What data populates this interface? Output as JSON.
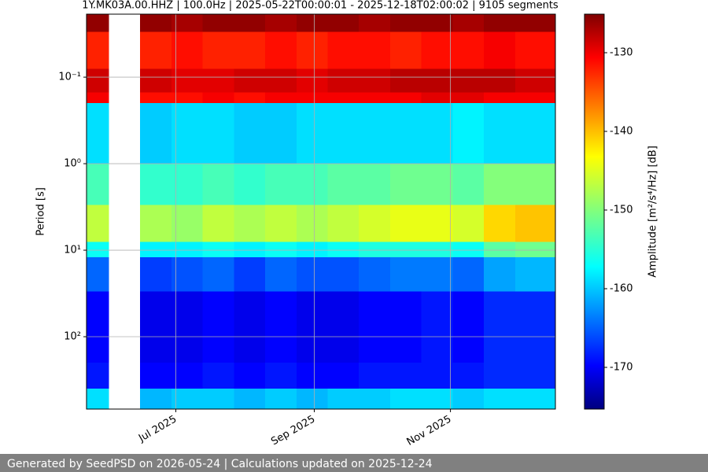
{
  "chart_data": {
    "type": "heatmap",
    "title": "1Y.MK03A.00.HHZ | 100.0Hz | 2025-05-22T00:00:01 - 2025-12-18T02:00:02 | 9105 segments",
    "ylabel": "Period [s]",
    "colorbar_label": "Amplitude [m²/s⁴/Hz] [dB]",
    "x_edges": [
      "2025-05-22",
      "2025-06-01",
      "2025-06-15",
      "2025-06-29",
      "2025-07-13",
      "2025-07-27",
      "2025-08-10",
      "2025-08-24",
      "2025-09-07",
      "2025-09-21",
      "2025-10-05",
      "2025-10-19",
      "2025-11-02",
      "2025-11-16",
      "2025-11-30",
      "2025-12-18"
    ],
    "y_edges": [
      0.0187,
      0.03,
      0.08,
      0.15,
      0.2,
      1,
      3,
      8,
      12,
      30,
      200,
      400,
      686
    ],
    "values": [
      [
        -126,
        null,
        -126,
        -127,
        -126,
        -126,
        -127,
        -126,
        -126,
        -127,
        -126,
        -126,
        -127,
        -126,
        -126
      ],
      [
        -133,
        null,
        -133,
        -132,
        -133,
        -133,
        -132,
        -133,
        -132,
        -132,
        -133,
        -132,
        -132,
        -131,
        -132
      ],
      [
        -129,
        null,
        -129,
        -130,
        -130,
        -129,
        -129,
        -130,
        -129,
        -129,
        -128,
        -128,
        -128,
        -128,
        -129
      ],
      [
        -131,
        null,
        -132,
        -132,
        -131,
        -132,
        -131,
        -131,
        -131,
        -131,
        -131,
        -130,
        -130,
        -131,
        -131
      ],
      [
        -158,
        null,
        -159,
        -158,
        -158,
        -159,
        -159,
        -158,
        -158,
        -158,
        -158,
        -158,
        -157,
        -158,
        -158
      ],
      [
        -153,
        null,
        -154,
        -154,
        -153,
        -154,
        -153,
        -153,
        -152,
        -152,
        -151,
        -151,
        -152,
        -150,
        -150
      ],
      [
        -147,
        null,
        -148,
        -149,
        -147,
        -148,
        -147,
        -148,
        -147,
        -146,
        -145,
        -145,
        -146,
        -142,
        -141
      ],
      [
        -156,
        null,
        -157,
        -157,
        -156,
        -157,
        -156,
        -157,
        -156,
        -155,
        -155,
        -155,
        -156,
        -152,
        -151
      ],
      [
        -164,
        null,
        -166,
        -165,
        -164,
        -166,
        -164,
        -165,
        -165,
        -164,
        -163,
        -163,
        -164,
        -161,
        -160
      ],
      [
        -169,
        null,
        -170,
        -170,
        -169,
        -170,
        -169,
        -170,
        -170,
        -169,
        -169,
        -168,
        -169,
        -167,
        -167
      ],
      [
        -168,
        null,
        -169,
        -169,
        -168,
        -169,
        -168,
        -169,
        -169,
        -168,
        -168,
        -168,
        -168,
        -167,
        -167
      ],
      [
        -158,
        null,
        -160,
        -159,
        -159,
        -160,
        -159,
        -160,
        -159,
        -159,
        -158,
        -158,
        -159,
        -158,
        -158
      ]
    ],
    "xlim": [
      "2025-05-22",
      "2025-12-18"
    ],
    "xticks": [
      {
        "value": "2025-07-01",
        "label": "Jul 2025"
      },
      {
        "value": "2025-09-01",
        "label": "Sep 2025"
      },
      {
        "value": "2025-11-01",
        "label": "Nov 2025"
      }
    ],
    "ylim": [
      0.0187,
      686
    ],
    "y_log": true,
    "y_inverted": true,
    "yticks": [
      {
        "value": 0.1,
        "label": "10⁻¹"
      },
      {
        "value": 1,
        "label": "10⁰"
      },
      {
        "value": 10,
        "label": "10¹"
      },
      {
        "value": 100,
        "label": "10²"
      }
    ],
    "clim": [
      -175.3,
      -125.1
    ],
    "colormap": "jet",
    "cticks": [
      -130,
      -140,
      -150,
      -160,
      -170
    ],
    "grid": true
  },
  "footer": "Generated by SeedPSD on 2026-05-24 | Calculations updated on 2025-12-24"
}
